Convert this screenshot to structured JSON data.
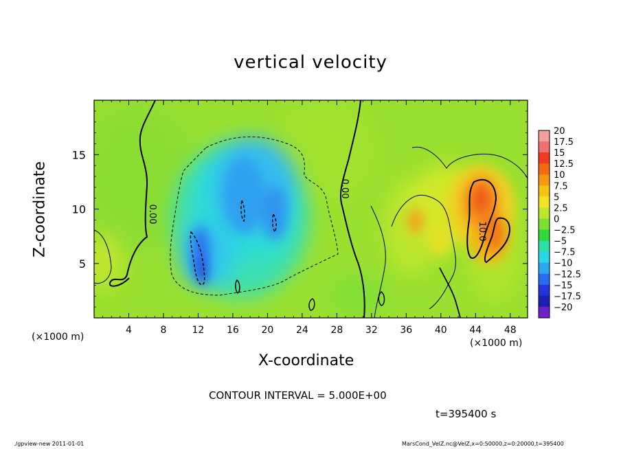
{
  "chart_data": {
    "type": "heatmap",
    "title": "vertical velocity",
    "xlabel": "X-coordinate",
    "ylabel": "Z-coordinate",
    "x_unit_label": "(×1000 m)",
    "xlim": [
      0,
      50
    ],
    "ylim": [
      0,
      20
    ],
    "x_ticks": [
      4,
      8,
      12,
      16,
      20,
      24,
      28,
      32,
      36,
      40,
      44,
      48
    ],
    "y_ticks": [
      5,
      10,
      15
    ],
    "colorbar": {
      "levels": [
        "20",
        "17.5",
        "15",
        "12.5",
        "10",
        "7.5",
        "5",
        "2.5",
        "0",
        "−2.5",
        "−5",
        "−7.5",
        "−10",
        "−12.5",
        "−15",
        "−17.5",
        "−20"
      ],
      "colors": [
        "#f2a0a0",
        "#f47070",
        "#f23a1e",
        "#f46a10",
        "#f59a10",
        "#f5c416",
        "#f0e626",
        "#bde82a",
        "#7ee032",
        "#30d838",
        "#2ce0a8",
        "#26d8e6",
        "#2aa8f2",
        "#2a6af2",
        "#2234dc",
        "#1c20b4",
        "#7020c8"
      ]
    },
    "contour_labels": [
      "0.00",
      "0.00",
      "10.0"
    ],
    "contour_interval_text": "CONTOUR INTERVAL = 5.000E+00",
    "time_text": "t=395400 s",
    "features": [
      {
        "kind": "updraft",
        "x": 45.2,
        "z": 11.0,
        "value": 15
      },
      {
        "kind": "updraft",
        "x": 47.5,
        "z": 7.5,
        "value": 12
      },
      {
        "kind": "updraft",
        "x": 37.0,
        "z": 8.5,
        "value": 8
      },
      {
        "kind": "downdraft",
        "x": 17.5,
        "z": 11.0,
        "value": -9
      },
      {
        "kind": "downdraft",
        "x": 12.5,
        "z": 5.0,
        "value": -12
      },
      {
        "kind": "downdraft",
        "x": 20.5,
        "z": 10.5,
        "value": -8
      }
    ]
  },
  "footer": {
    "left": "./gpview-new   2011-01-01",
    "right": "MarsCond_VelZ.nc@VelZ,x=0:50000,z=0:20000,t=395400"
  }
}
